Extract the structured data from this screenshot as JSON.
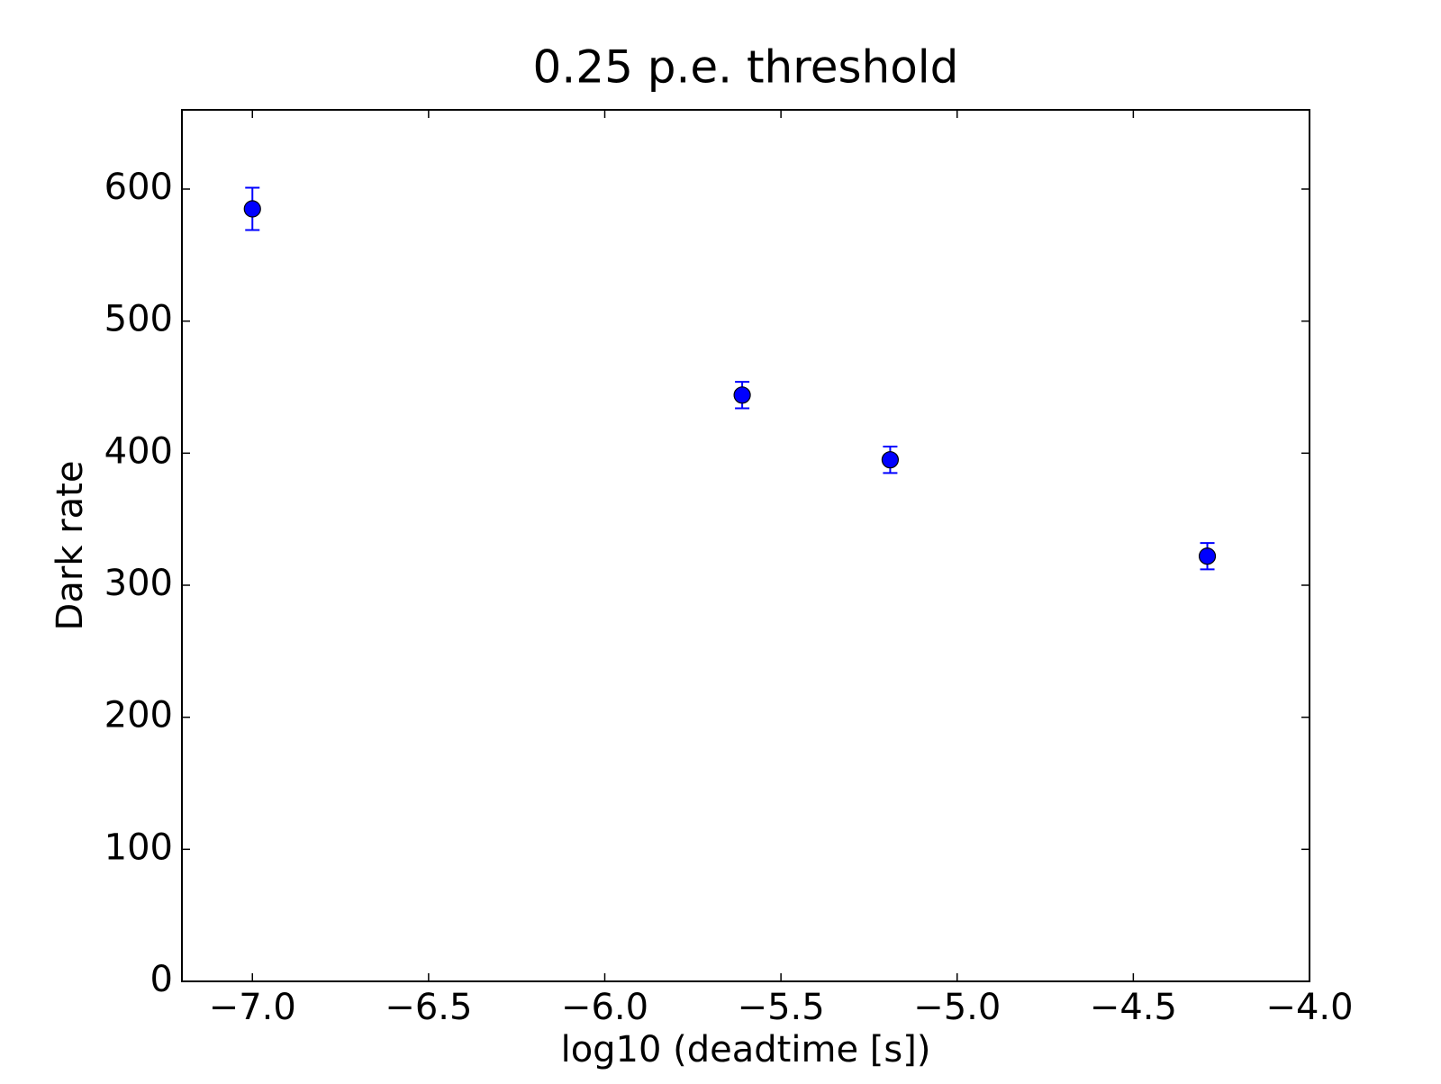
{
  "chart_data": {
    "type": "scatter",
    "title": "0.25 p.e. threshold",
    "xlabel": "log10 (deadtime [s])",
    "ylabel": "Dark rate",
    "x": [
      -7.0,
      -5.61,
      -5.19,
      -4.29
    ],
    "values": [
      585,
      444,
      395,
      322
    ],
    "errors": [
      16,
      10,
      10,
      10
    ],
    "color": "#0000ff",
    "xlim": [
      -7.2,
      -4.0
    ],
    "xticks": [
      {
        "value": -7.0,
        "label": "−7.0"
      },
      {
        "value": -6.5,
        "label": "−6.5"
      },
      {
        "value": -6.0,
        "label": "−6.0"
      },
      {
        "value": -5.5,
        "label": "−5.5"
      },
      {
        "value": -5.0,
        "label": "−5.0"
      },
      {
        "value": -4.5,
        "label": "−4.5"
      },
      {
        "value": -4.0,
        "label": "−4.0"
      }
    ],
    "ylim": [
      0,
      660
    ],
    "yticks": [
      0,
      100,
      200,
      300,
      400,
      500,
      600
    ],
    "grid": false
  }
}
